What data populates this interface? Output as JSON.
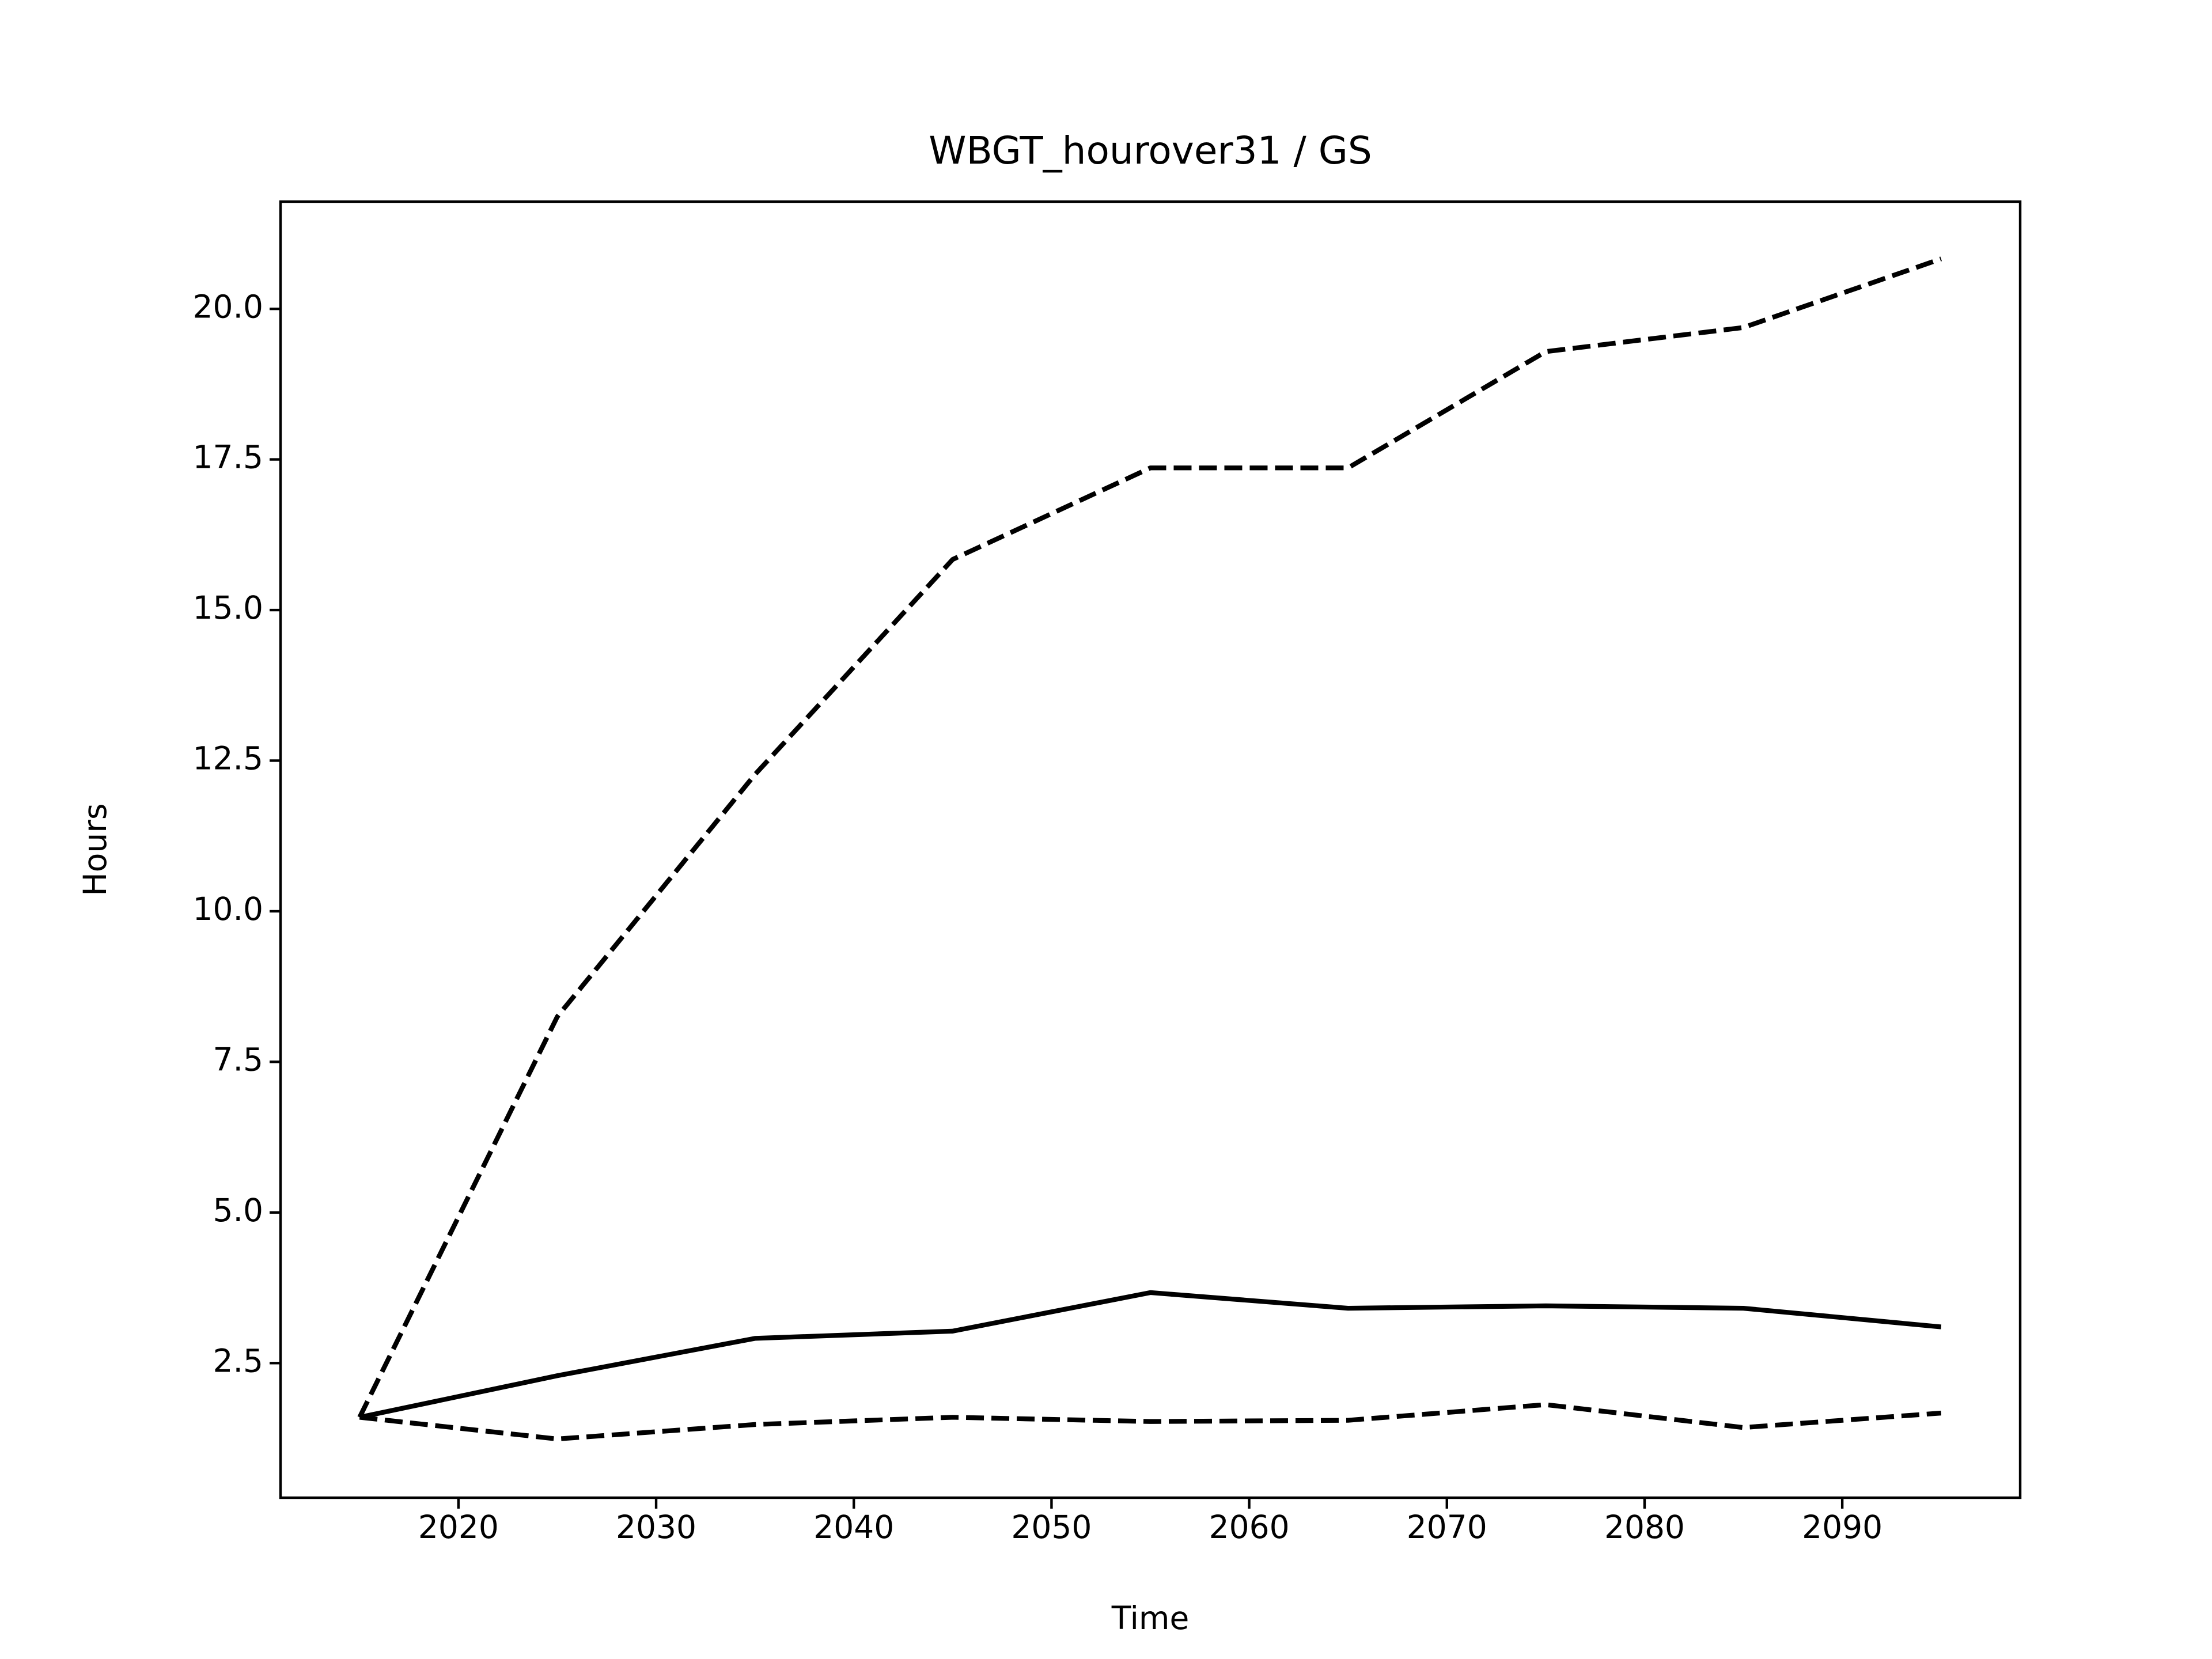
{
  "chart_data": {
    "type": "line",
    "title": "WBGT_hourover31 / GS",
    "xlabel": "Time",
    "ylabel": "Hours",
    "x": [
      2015,
      2025,
      2035,
      2045,
      2055,
      2065,
      2075,
      2085,
      2095
    ],
    "series": [
      {
        "color": "#000000",
        "linestyle": "solid",
        "values": [
          1.6,
          2.29,
          2.91,
          3.03,
          3.67,
          3.41,
          3.45,
          3.41,
          3.1
        ]
      },
      {
        "color": "#000000",
        "linestyle": "dashed",
        "values": [
          1.6,
          8.25,
          12.27,
          15.84,
          17.36,
          17.36,
          19.29,
          19.69,
          20.83
        ]
      },
      {
        "color": "#000000",
        "linestyle": "dashed",
        "values": [
          1.6,
          1.24,
          1.48,
          1.6,
          1.53,
          1.55,
          1.81,
          1.43,
          1.67
        ]
      }
    ],
    "xlim": [
      2011,
      2099
    ],
    "xticks": [
      2020,
      2030,
      2040,
      2050,
      2060,
      2070,
      2080,
      2090
    ],
    "ylim": [
      0.265,
      21.78
    ],
    "yticks": [
      2.5,
      {
        "value": 5,
        "label": "5.0"
      },
      7.5,
      {
        "value": 10,
        "label": "10.0"
      },
      12.5,
      {
        "value": 15,
        "label": "15.0"
      },
      17.5,
      {
        "value": 20,
        "label": "20.0"
      }
    ],
    "grid": false
  }
}
